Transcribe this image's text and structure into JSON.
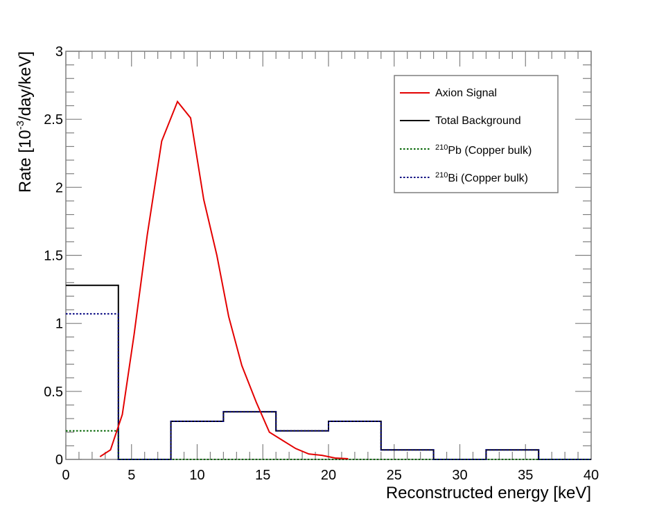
{
  "chart_data": {
    "type": "line",
    "title": "",
    "xlabel": "Reconstructed energy [keV]",
    "ylabel": {
      "prefix": "Rate [10",
      "sup": "-3",
      "suffix": "/day/keV]"
    },
    "xlim": [
      0,
      40
    ],
    "ylim": [
      0,
      3
    ],
    "x_ticks": [
      "0",
      "5",
      "10",
      "15",
      "20",
      "25",
      "30",
      "35",
      "40"
    ],
    "y_ticks": [
      "0",
      "0.5",
      "1",
      "1.5",
      "2",
      "2.5",
      "3"
    ],
    "legend_position": "top-right",
    "legend": [
      {
        "id": "axion",
        "label": "Axion Signal",
        "sup": "",
        "style": "solid"
      },
      {
        "id": "total",
        "label": "Total Background",
        "sup": "",
        "style": "solid"
      },
      {
        "id": "pb210",
        "label": "Pb (Copper bulk)",
        "sup": "210",
        "style": "dotted"
      },
      {
        "id": "bi210",
        "label": "Bi (Copper bulk)",
        "sup": "210",
        "style": "dotted"
      }
    ],
    "colors": {
      "axion": "#e30000",
      "total": "#000000",
      "pb210": "#006400",
      "bi210": "#00007f",
      "frame": "#7f7f7f"
    },
    "bin_edges": [
      0,
      4,
      8,
      12,
      16,
      20,
      24,
      28,
      32,
      36,
      40
    ],
    "series": [
      {
        "name": "Axion Signal",
        "kind": "curve",
        "x": [
          2.6,
          3.4,
          4.3,
          5.2,
          6.2,
          7.3,
          8.5,
          9.5,
          10.5,
          11.5,
          12.4,
          13.4,
          14.5,
          15.5,
          16.5,
          17.5,
          18.5,
          19.5,
          20.5,
          21.5
        ],
        "y": [
          0.02,
          0.07,
          0.33,
          0.92,
          1.65,
          2.34,
          2.63,
          2.51,
          1.91,
          1.5,
          1.05,
          0.69,
          0.42,
          0.2,
          0.14,
          0.08,
          0.04,
          0.03,
          0.01,
          0.005
        ]
      },
      {
        "name": "Total Background",
        "kind": "histogram",
        "values": [
          1.28,
          0,
          0.28,
          0.35,
          0.21,
          0.28,
          0.07,
          0,
          0.07,
          0
        ]
      },
      {
        "name": "210Pb (Copper bulk)",
        "kind": "histogram",
        "values": [
          0.21,
          0,
          0,
          0,
          0,
          0,
          0,
          0,
          0,
          0
        ]
      },
      {
        "name": "210Bi (Copper bulk)",
        "kind": "histogram",
        "values": [
          1.07,
          0,
          0.28,
          0.35,
          0.21,
          0.28,
          0.07,
          0,
          0.07,
          0
        ]
      }
    ]
  }
}
